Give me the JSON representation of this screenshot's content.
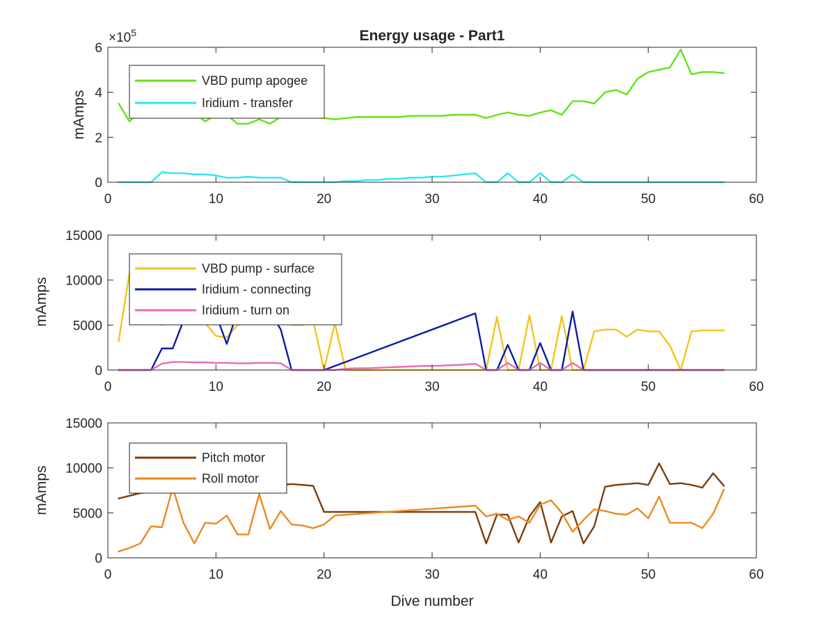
{
  "chart_data": [
    {
      "type": "line",
      "title": "Energy usage - Part1",
      "xlabel": "",
      "ylabel": "mAmps",
      "y_exponent_label": "×10",
      "y_exponent_power": "5",
      "xlim": [
        0,
        60
      ],
      "ylim": [
        0,
        6
      ],
      "xticks": [
        "0",
        "10",
        "20",
        "30",
        "40",
        "50",
        "60"
      ],
      "yticks": [
        "0",
        "2",
        "4",
        "6"
      ],
      "legend_placement": "top-left",
      "series": [
        {
          "name": "VBD pump apogee",
          "color": "#66e11a",
          "x": [
            1,
            2,
            3,
            4,
            5,
            6,
            7,
            8,
            9,
            10,
            11,
            12,
            13,
            14,
            15,
            16,
            17,
            18,
            19,
            20,
            21,
            22,
            23,
            24,
            25,
            26,
            27,
            28,
            29,
            30,
            31,
            32,
            33,
            34,
            35,
            36,
            37,
            38,
            39,
            40,
            41,
            42,
            43,
            44,
            45,
            46,
            47,
            48,
            49,
            50,
            51,
            52,
            53,
            54,
            55,
            56,
            57
          ],
          "y": [
            3.5,
            2.7,
            3.2,
            3.4,
            3.4,
            3.3,
            3.2,
            3.1,
            2.7,
            3.0,
            3.0,
            2.6,
            2.6,
            2.8,
            2.6,
            2.9,
            2.95,
            2.95,
            2.9,
            2.85,
            2.8,
            2.85,
            2.9,
            2.9,
            2.9,
            2.9,
            2.9,
            2.95,
            2.95,
            2.95,
            2.95,
            3.0,
            3.0,
            3.0,
            2.85,
            3.0,
            3.1,
            3.0,
            2.95,
            3.1,
            3.2,
            3.0,
            3.6,
            3.6,
            3.5,
            4.0,
            4.1,
            3.9,
            4.6,
            4.9,
            5.0,
            5.1,
            5.9,
            4.8,
            4.9,
            4.9,
            4.85
          ]
        },
        {
          "name": "Iridium - transfer",
          "color": "#2ee6f0",
          "x": [
            1,
            2,
            3,
            4,
            5,
            6,
            7,
            8,
            9,
            10,
            11,
            12,
            13,
            14,
            15,
            16,
            17,
            18,
            19,
            20,
            21,
            22,
            23,
            24,
            25,
            26,
            27,
            28,
            29,
            30,
            31,
            32,
            33,
            34,
            35,
            36,
            37,
            38,
            39,
            40,
            41,
            42,
            43,
            44,
            45,
            46,
            47,
            48,
            49,
            50,
            51,
            52,
            53,
            54,
            55,
            56,
            57
          ],
          "y": [
            0,
            0,
            0,
            0,
            0.45,
            0.4,
            0.4,
            0.35,
            0.35,
            0.3,
            0.2,
            0.2,
            0.25,
            0.2,
            0.2,
            0.2,
            0,
            0,
            0,
            0,
            0,
            0.05,
            0.05,
            0.1,
            0.1,
            0.15,
            0.15,
            0.2,
            0.2,
            0.25,
            0.25,
            0.3,
            0.35,
            0.4,
            0,
            0,
            0.4,
            0,
            0,
            0.4,
            0,
            0,
            0.35,
            0,
            0,
            0,
            0,
            0,
            0,
            0,
            0,
            0,
            0,
            0,
            0,
            0,
            0
          ]
        }
      ]
    },
    {
      "type": "line",
      "title": "",
      "xlabel": "",
      "ylabel": "mAmps",
      "xlim": [
        0,
        60
      ],
      "ylim": [
        0,
        15000
      ],
      "xticks": [
        "0",
        "10",
        "20",
        "30",
        "40",
        "50",
        "60"
      ],
      "yticks": [
        "0",
        "5000",
        "10000",
        "15000"
      ],
      "legend_placement": "top-left",
      "series": [
        {
          "name": "VBD pump - surface",
          "color": "#f2c51a",
          "x": [
            1,
            2,
            3,
            4,
            5,
            6,
            7,
            8,
            9,
            10,
            11,
            12,
            13,
            14,
            15,
            16,
            17,
            18,
            19,
            20,
            21,
            22,
            23,
            24,
            25,
            26,
            27,
            28,
            29,
            30,
            31,
            32,
            33,
            34,
            35,
            36,
            37,
            38,
            39,
            40,
            41,
            42,
            43,
            44,
            45,
            46,
            47,
            48,
            49,
            50,
            51,
            52,
            53,
            54,
            55,
            56,
            57
          ],
          "y": [
            3200,
            10800,
            8000,
            6000,
            5000,
            5500,
            6000,
            5500,
            5200,
            3800,
            3600,
            5000,
            5500,
            6000,
            5500,
            6000,
            5000,
            5000,
            5500,
            0,
            5200,
            0,
            0,
            0,
            0,
            0,
            0,
            0,
            0,
            0,
            0,
            0,
            0,
            0,
            0,
            5900,
            0,
            0,
            6100,
            0,
            0,
            6000,
            0,
            0,
            4300,
            4500,
            4500,
            3700,
            4500,
            4300,
            4300,
            2700,
            0,
            4300,
            4400,
            4400,
            4400
          ]
        },
        {
          "name": "Iridium - connecting",
          "color": "#0d1aa6",
          "x": [
            1,
            2,
            3,
            4,
            5,
            6,
            7,
            8,
            9,
            10,
            11,
            12,
            13,
            14,
            15,
            16,
            17,
            20,
            34,
            35,
            36,
            37,
            38,
            39,
            40,
            41,
            42,
            43,
            44,
            45,
            46,
            47,
            48,
            49,
            50,
            51,
            52,
            53,
            54,
            55,
            56,
            57
          ],
          "y": [
            0,
            0,
            0,
            0,
            2400,
            2400,
            5500,
            6500,
            6000,
            6200,
            2900,
            6500,
            6600,
            6500,
            6500,
            4500,
            0,
            0,
            6300,
            0,
            0,
            2800,
            0,
            0,
            3000,
            0,
            0,
            6500,
            0,
            0,
            0,
            0,
            0,
            0,
            0,
            0,
            0,
            0,
            0,
            0,
            0,
            0
          ]
        },
        {
          "name": "Iridium - turn on",
          "color": "#e86bb5",
          "x": [
            1,
            2,
            3,
            4,
            5,
            6,
            7,
            8,
            9,
            10,
            11,
            12,
            13,
            14,
            15,
            16,
            17,
            18,
            19,
            20,
            21,
            22,
            23,
            24,
            25,
            26,
            27,
            28,
            29,
            30,
            31,
            32,
            33,
            34,
            35,
            36,
            37,
            38,
            39,
            40,
            41,
            42,
            43,
            44,
            45,
            46,
            47,
            48,
            49,
            50,
            51,
            52,
            53,
            54,
            55,
            56,
            57
          ],
          "y": [
            0,
            0,
            0,
            0,
            700,
            900,
            900,
            850,
            850,
            800,
            800,
            750,
            750,
            800,
            800,
            750,
            0,
            0,
            0,
            0,
            0,
            150,
            200,
            200,
            250,
            300,
            350,
            400,
            450,
            450,
            500,
            550,
            600,
            700,
            0,
            0,
            800,
            0,
            0,
            800,
            0,
            0,
            800,
            0,
            0,
            0,
            0,
            0,
            0,
            0,
            0,
            0,
            0,
            0,
            0,
            0,
            0
          ]
        }
      ]
    },
    {
      "type": "line",
      "title": "",
      "xlabel": "Dive number",
      "ylabel": "mAmps",
      "xlim": [
        0,
        60
      ],
      "ylim": [
        0,
        15000
      ],
      "xticks": [
        "0",
        "10",
        "20",
        "30",
        "40",
        "50",
        "60"
      ],
      "yticks": [
        "0",
        "5000",
        "10000",
        "15000"
      ],
      "legend_placement": "top-left",
      "series": [
        {
          "name": "Pitch motor",
          "color": "#7a3f10",
          "x": [
            1,
            2,
            3,
            4,
            5,
            6,
            7,
            8,
            9,
            10,
            11,
            12,
            13,
            14,
            15,
            16,
            17,
            18,
            19,
            20,
            21,
            34,
            35,
            36,
            37,
            38,
            39,
            40,
            41,
            42,
            43,
            44,
            45,
            46,
            47,
            48,
            49,
            50,
            51,
            52,
            53,
            54,
            55,
            56,
            57
          ],
          "y": [
            6600,
            6900,
            7200,
            7300,
            7400,
            7600,
            7700,
            7700,
            7800,
            7900,
            8000,
            8000,
            8000,
            8100,
            8100,
            8100,
            8200,
            8100,
            8000,
            5100,
            5100,
            5100,
            1600,
            4800,
            4800,
            1700,
            4600,
            6200,
            1700,
            4600,
            5200,
            1600,
            3500,
            7900,
            8100,
            8200,
            8300,
            8100,
            10500,
            8200,
            8300,
            8100,
            7800,
            9400,
            8000
          ]
        },
        {
          "name": "Roll motor",
          "color": "#ea8a1e",
          "x": [
            1,
            2,
            3,
            4,
            5,
            6,
            7,
            8,
            9,
            10,
            11,
            12,
            13,
            14,
            15,
            16,
            17,
            18,
            19,
            20,
            21,
            34,
            35,
            36,
            37,
            38,
            39,
            40,
            41,
            42,
            43,
            44,
            45,
            46,
            47,
            48,
            49,
            50,
            51,
            52,
            53,
            54,
            55,
            56,
            57
          ],
          "y": [
            700,
            1100,
            1600,
            3500,
            3400,
            7800,
            3900,
            1600,
            3900,
            3800,
            4700,
            2600,
            2600,
            7100,
            3200,
            5200,
            3700,
            3600,
            3300,
            3700,
            4700,
            5800,
            4600,
            4900,
            4200,
            4600,
            3900,
            5900,
            6400,
            5000,
            2900,
            4200,
            5400,
            5200,
            4900,
            4800,
            5500,
            4400,
            6800,
            3900,
            3900,
            3900,
            3300,
            4900,
            7600
          ]
        }
      ]
    }
  ]
}
